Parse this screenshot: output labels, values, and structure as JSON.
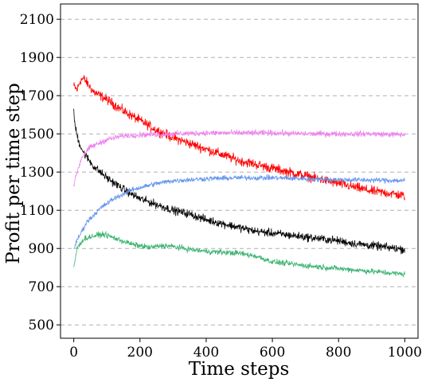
{
  "chart_data": {
    "type": "line",
    "title": "",
    "xlabel": "Time steps",
    "ylabel": "Profit per time step",
    "xlim": [
      -40,
      1040
    ],
    "ylim": [
      430,
      2180
    ],
    "x_ticks": [
      0,
      200,
      400,
      600,
      800,
      1000
    ],
    "y_ticks": [
      500,
      700,
      900,
      1100,
      1300,
      1500,
      1700,
      1900,
      2100
    ],
    "grid": "horizontal dashed",
    "legend": "none",
    "series": [
      {
        "color": "#ff0000",
        "points": [
          [
            0,
            1750
          ],
          [
            10,
            1730
          ],
          [
            20,
            1780
          ],
          [
            30,
            1790
          ],
          [
            60,
            1720
          ],
          [
            100,
            1680
          ],
          [
            150,
            1620
          ],
          [
            200,
            1570
          ],
          [
            250,
            1520
          ],
          [
            300,
            1480
          ],
          [
            350,
            1450
          ],
          [
            400,
            1420
          ],
          [
            450,
            1390
          ],
          [
            500,
            1360
          ],
          [
            550,
            1340
          ],
          [
            600,
            1320
          ],
          [
            650,
            1300
          ],
          [
            700,
            1280
          ],
          [
            750,
            1260
          ],
          [
            800,
            1240
          ],
          [
            850,
            1220
          ],
          [
            900,
            1200
          ],
          [
            950,
            1190
          ],
          [
            1000,
            1175
          ]
        ],
        "noise": 38
      },
      {
        "color": "#000000",
        "points": [
          [
            0,
            1610
          ],
          [
            5,
            1530
          ],
          [
            15,
            1460
          ],
          [
            30,
            1400
          ],
          [
            60,
            1330
          ],
          [
            100,
            1270
          ],
          [
            150,
            1210
          ],
          [
            200,
            1160
          ],
          [
            250,
            1130
          ],
          [
            300,
            1100
          ],
          [
            350,
            1080
          ],
          [
            400,
            1050
          ],
          [
            450,
            1030
          ],
          [
            500,
            1010
          ],
          [
            550,
            990
          ],
          [
            600,
            980
          ],
          [
            650,
            970
          ],
          [
            700,
            960
          ],
          [
            750,
            950
          ],
          [
            800,
            940
          ],
          [
            850,
            925
          ],
          [
            900,
            915
          ],
          [
            950,
            905
          ],
          [
            1000,
            895
          ]
        ],
        "noise": 32
      },
      {
        "color": "#ee82ee",
        "points": [
          [
            0,
            1230
          ],
          [
            10,
            1300
          ],
          [
            25,
            1380
          ],
          [
            50,
            1430
          ],
          [
            100,
            1470
          ],
          [
            150,
            1490
          ],
          [
            200,
            1495
          ],
          [
            300,
            1500
          ],
          [
            400,
            1505
          ],
          [
            500,
            1505
          ],
          [
            600,
            1505
          ],
          [
            700,
            1500
          ],
          [
            800,
            1500
          ],
          [
            900,
            1500
          ],
          [
            1000,
            1495
          ]
        ],
        "noise": 22
      },
      {
        "color": "#6495ed",
        "points": [
          [
            0,
            900
          ],
          [
            15,
            960
          ],
          [
            40,
            1040
          ],
          [
            80,
            1110
          ],
          [
            120,
            1160
          ],
          [
            180,
            1210
          ],
          [
            250,
            1240
          ],
          [
            300,
            1255
          ],
          [
            400,
            1265
          ],
          [
            500,
            1270
          ],
          [
            600,
            1270
          ],
          [
            700,
            1265
          ],
          [
            800,
            1260
          ],
          [
            900,
            1258
          ],
          [
            1000,
            1255
          ]
        ],
        "noise": 20
      },
      {
        "color": "#3cb371",
        "points": [
          [
            0,
            800
          ],
          [
            10,
            900
          ],
          [
            30,
            950
          ],
          [
            60,
            965
          ],
          [
            90,
            975
          ],
          [
            130,
            950
          ],
          [
            180,
            920
          ],
          [
            230,
            905
          ],
          [
            270,
            915
          ],
          [
            300,
            910
          ],
          [
            350,
            895
          ],
          [
            400,
            885
          ],
          [
            450,
            880
          ],
          [
            500,
            875
          ],
          [
            550,
            860
          ],
          [
            600,
            830
          ],
          [
            700,
            810
          ],
          [
            800,
            795
          ],
          [
            900,
            780
          ],
          [
            1000,
            765
          ]
        ],
        "noise": 22
      }
    ]
  }
}
